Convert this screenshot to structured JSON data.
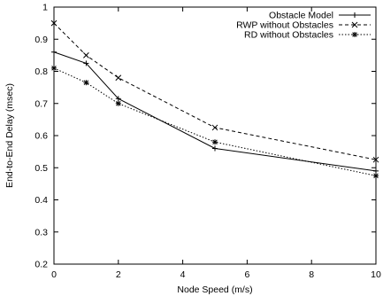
{
  "chart_data": {
    "type": "line",
    "title": "",
    "xlabel": "Node Speed (m/s)",
    "ylabel": "End-to-End Delay (msec)",
    "xlim": [
      0,
      10
    ],
    "ylim": [
      0.2,
      1
    ],
    "xticks": [
      0,
      2,
      4,
      6,
      8,
      10
    ],
    "yticks": [
      0.2,
      0.3,
      0.4,
      0.5,
      0.6,
      0.7,
      0.8,
      0.9,
      1
    ],
    "xtick_labels": [
      "0",
      "2",
      "4",
      "6",
      "8",
      "10"
    ],
    "ytick_labels": [
      "0.2",
      "0.3",
      "0.4",
      "0.5",
      "0.6",
      "0.7",
      "0.8",
      "0.9",
      "1"
    ],
    "grid": false,
    "legend_position": "top-right",
    "x": [
      0,
      1,
      2,
      5,
      10
    ],
    "series": [
      {
        "name": "Obstacle Model",
        "values": [
          0.86,
          0.825,
          0.715,
          0.56,
          0.49
        ],
        "marker": "plus",
        "line": "solid"
      },
      {
        "name": "RWP without Obstacles",
        "values": [
          0.95,
          0.85,
          0.78,
          0.625,
          0.525
        ],
        "marker": "cross",
        "line": "dashed"
      },
      {
        "name": "RD without Obstacles",
        "values": [
          0.81,
          0.765,
          0.7,
          0.58,
          0.475
        ],
        "marker": "star",
        "line": "dotted"
      }
    ]
  }
}
